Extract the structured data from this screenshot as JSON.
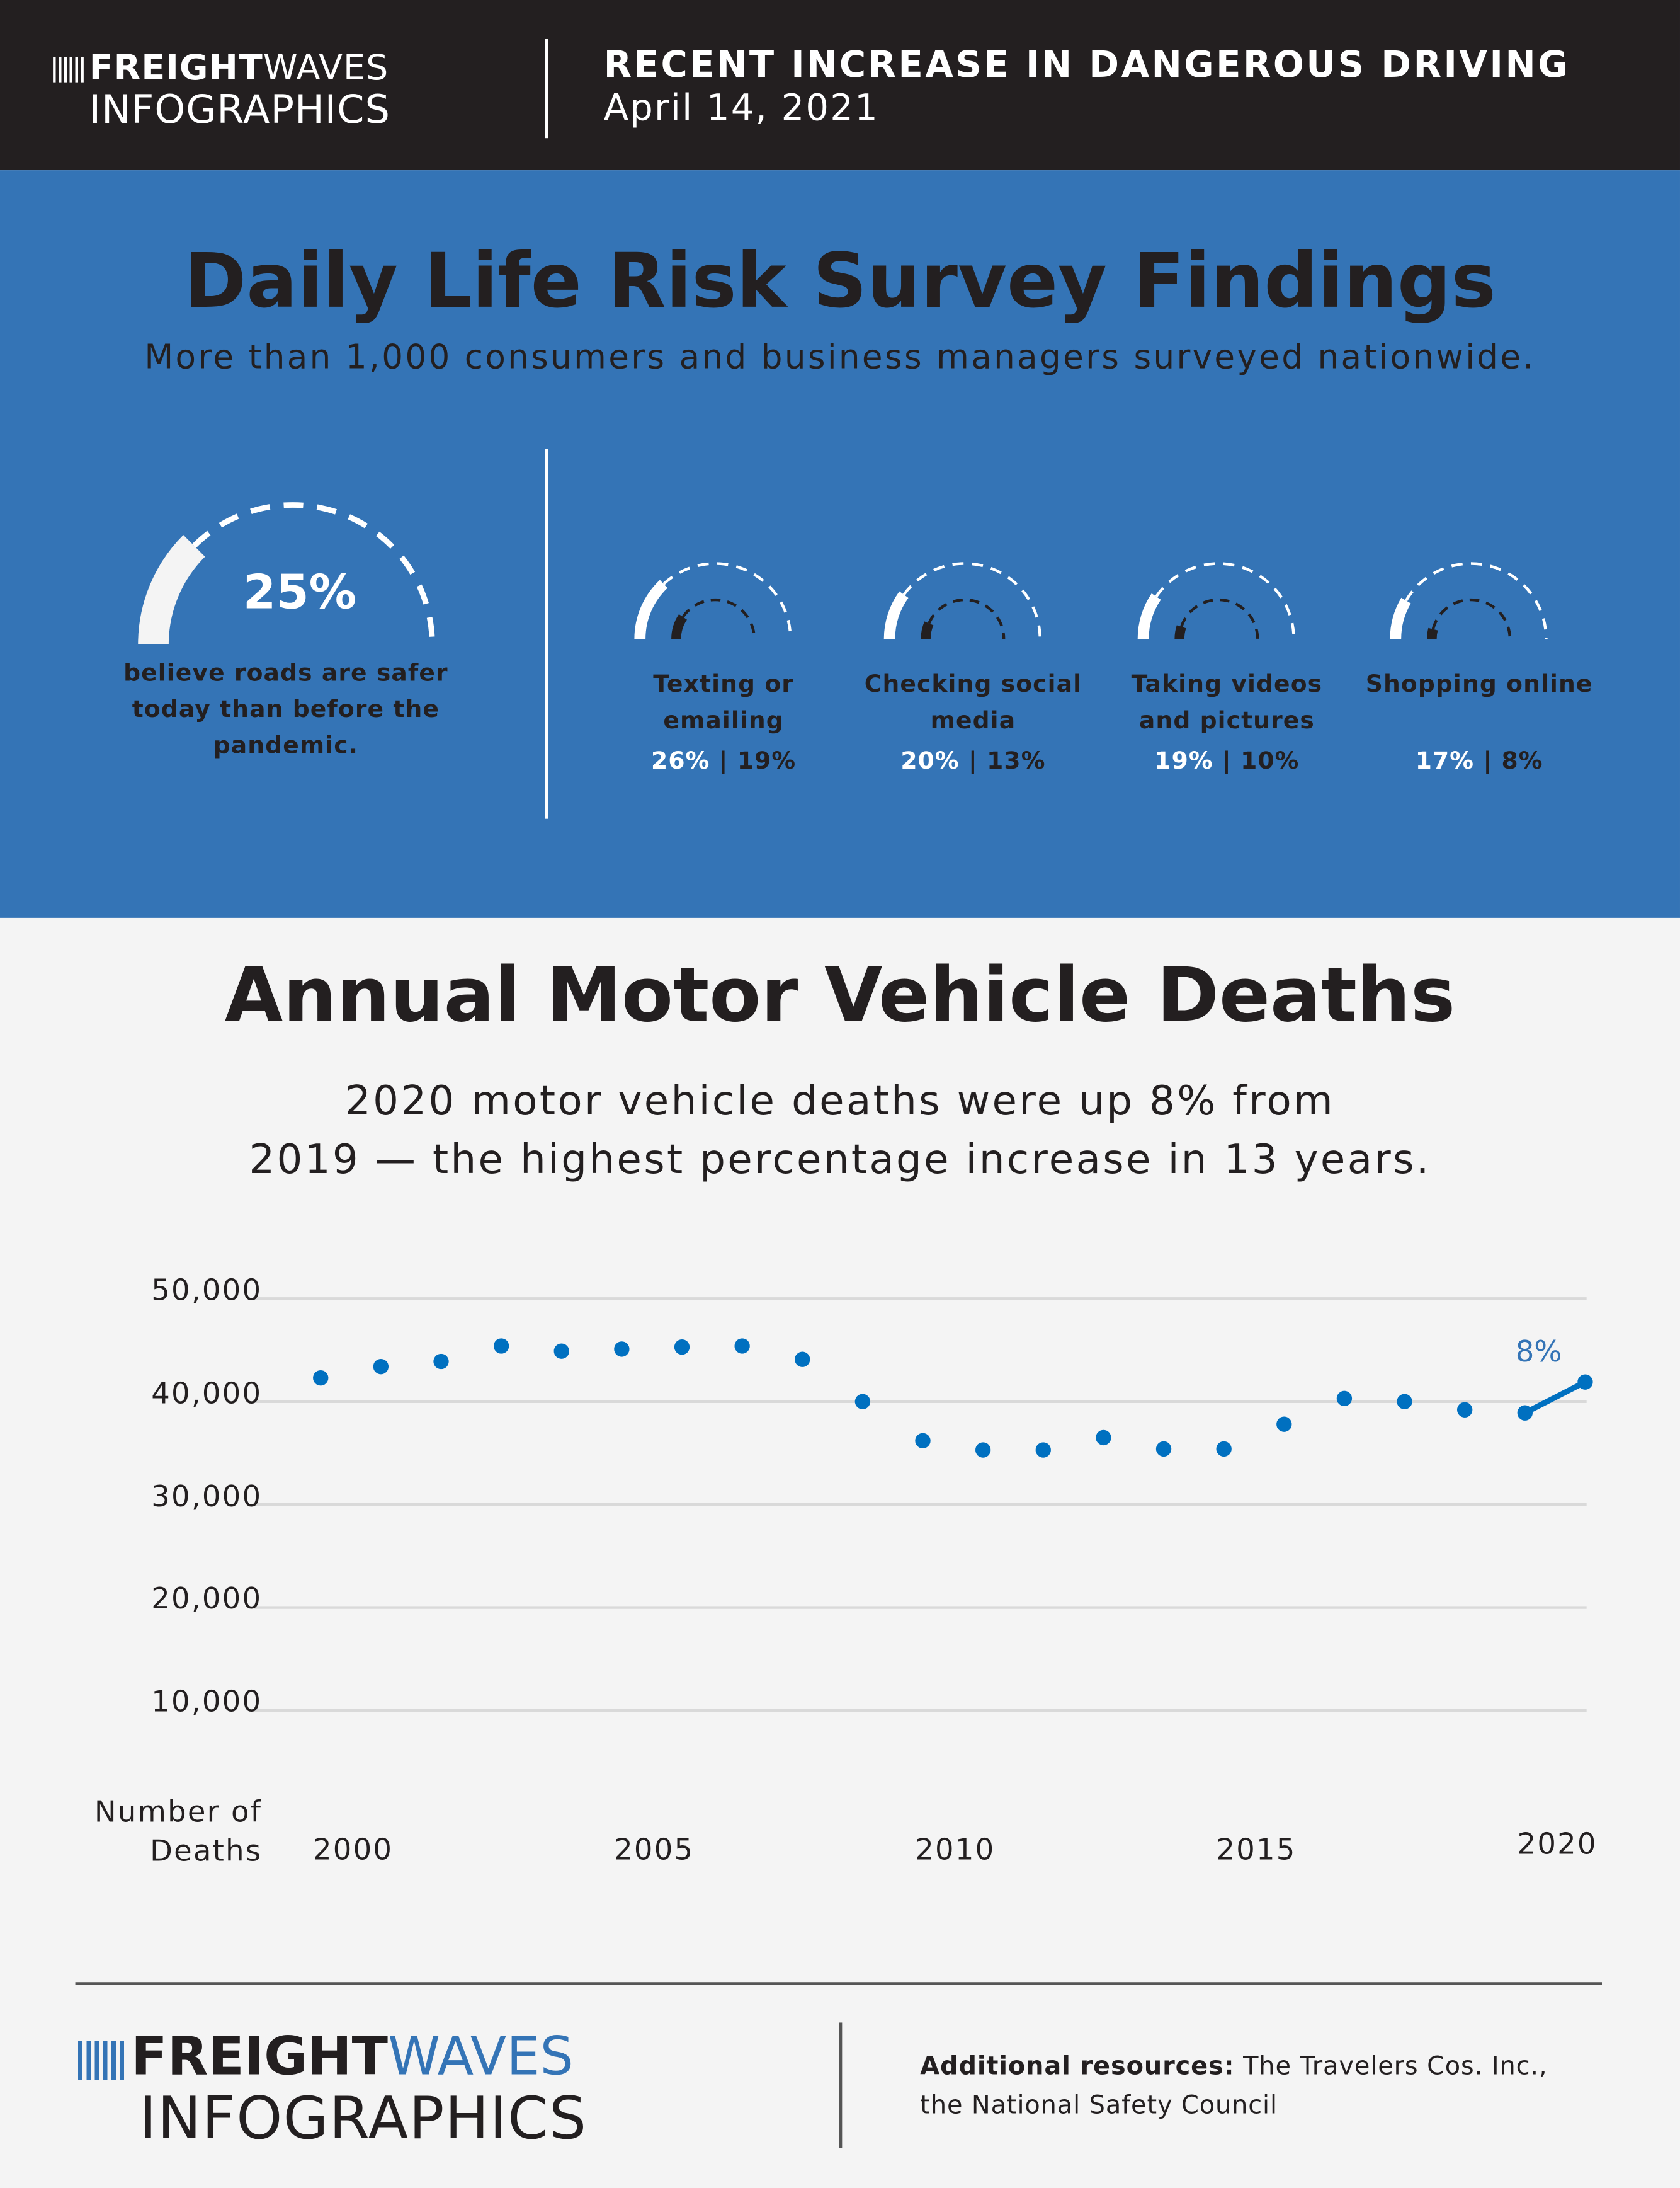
{
  "header": {
    "logo_bold": "FREIGHT",
    "logo_light": "WAVES",
    "logo_sub": "INFOGRAPHICS",
    "title": "RECENT INCREASE IN DANGEROUS DRIVING",
    "date": "April 14, 2021"
  },
  "survey": {
    "title": "Daily Life Risk Survey Findings",
    "subtitle": "More than 1,000 consumers and business managers surveyed nationwide.",
    "main": {
      "value": 25,
      "value_label": "25%",
      "caption": "believe roads are safer today than before the pandemic."
    },
    "items": [
      {
        "label": "Texting or emailing",
        "a": 26,
        "b": 19,
        "a_label": "26%",
        "b_label": "19%"
      },
      {
        "label": "Checking social media",
        "a": 20,
        "b": 13,
        "a_label": "20%",
        "b_label": "13%"
      },
      {
        "label": "Taking videos and pictures",
        "a": 19,
        "b": 10,
        "a_label": "19%",
        "b_label": "10%"
      },
      {
        "label": "Shopping online",
        "a": 17,
        "b": 8,
        "a_label": "17%",
        "b_label": "8%"
      }
    ],
    "separator": "|"
  },
  "chart_data": {
    "type": "scatter",
    "title": "Annual Motor Vehicle Deaths",
    "subtitle_line1": "2020 motor vehicle deaths were up 8% from",
    "subtitle_line2": "2019 — the highest percentage increase in 13 years.",
    "ylabel_line1": "Number of",
    "ylabel_line2": "Deaths",
    "ylim": [
      0,
      50000
    ],
    "yticks": [
      10000,
      20000,
      30000,
      40000,
      50000
    ],
    "ytick_labels": [
      "10,000",
      "20,000",
      "30,000",
      "40,000",
      "50,000"
    ],
    "xticks": [
      2000,
      2005,
      2010,
      2015,
      2020
    ],
    "xtick_labels": [
      "2000",
      "2005",
      "2010",
      "2015",
      "2020"
    ],
    "x": [
      1999,
      2000,
      2001,
      2002,
      2003,
      2004,
      2005,
      2006,
      2007,
      2008,
      2009,
      2010,
      2011,
      2012,
      2013,
      2014,
      2015,
      2016,
      2017,
      2018,
      2019,
      2020
    ],
    "values": [
      42300,
      43400,
      43900,
      45400,
      44900,
      45100,
      45300,
      45400,
      44100,
      40000,
      36200,
      35300,
      35300,
      36500,
      35400,
      35400,
      37800,
      40300,
      40000,
      39200,
      38900,
      41900
    ],
    "annotation": "8%",
    "grid": true,
    "color": "#0070c0"
  },
  "footer": {
    "logo_bold": "FREIGHT",
    "logo_light": "WAVES",
    "logo_sub": "INFOGRAPHICS",
    "resources_label": "Additional resources:",
    "resources_text": "The Travelers Cos. Inc.,  the National Safety Council"
  },
  "colors": {
    "header_bg": "#231f20",
    "survey_bg": "#3474b6",
    "accent": "#0070c0",
    "page_bg": "#f4f4f4"
  }
}
